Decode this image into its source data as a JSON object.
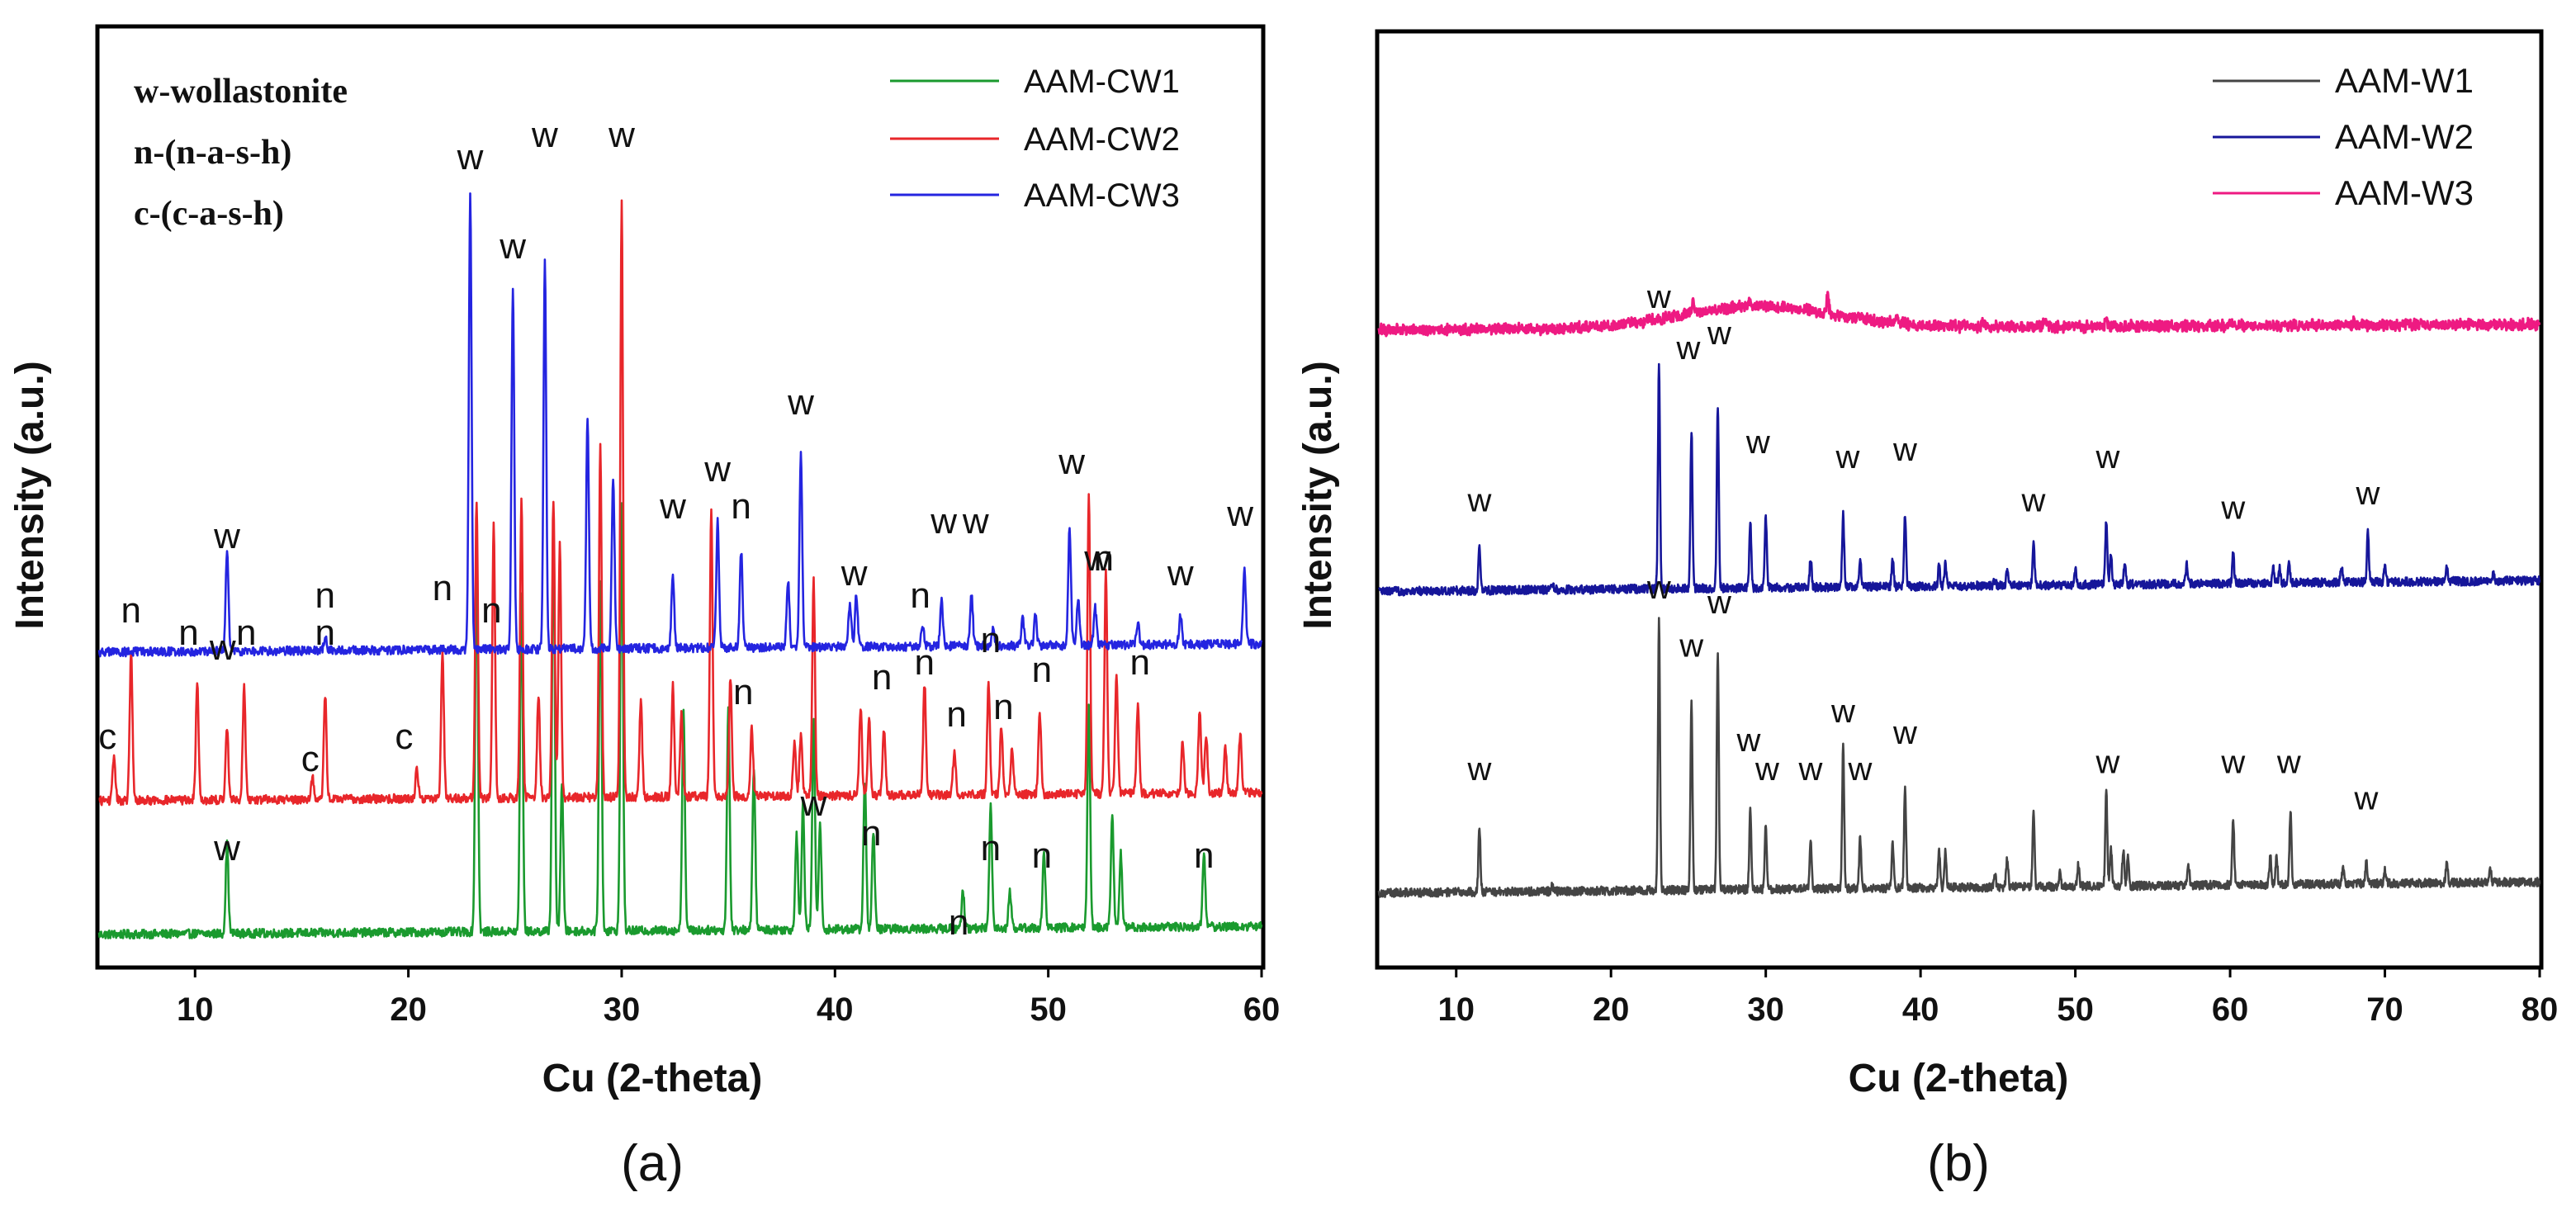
{
  "figure": {
    "panel_a_caption": "(a)",
    "panel_b_caption": "(b)"
  },
  "colors": {
    "cw1": "#1a9a2e",
    "cw2": "#e8262a",
    "cw3": "#2424e0",
    "w1": "#444444",
    "w2": "#16169a",
    "w3": "#ee1a82"
  },
  "chart_data": [
    {
      "type": "line",
      "panel": "a",
      "title": "",
      "xlabel": "Cu (2-theta)",
      "ylabel": "Intensity (a.u.)",
      "xlim": [
        5.5,
        60
      ],
      "xticks": [
        10,
        20,
        30,
        40,
        50,
        60
      ],
      "legend": {
        "placement": "top-right",
        "entries": [
          "AAM-CW1",
          "AAM-CW2",
          "AAM-CW3"
        ]
      },
      "phase_key": [
        "w-wollastonite",
        "n-(n-a-s-h)",
        "c-(c-a-s-h)"
      ],
      "series": [
        {
          "name": "AAM-CW1",
          "color_key": "cw1",
          "baseline": 0.02,
          "slope": 0.0002,
          "peaks": [
            [
              11.5,
              0.12
            ],
            [
              23.2,
              0.52
            ],
            [
              25.3,
              0.46
            ],
            [
              26.8,
              0.56
            ],
            [
              27.2,
              0.2
            ],
            [
              29.0,
              0.47
            ],
            [
              30.0,
              0.58
            ],
            [
              32.9,
              0.3
            ],
            [
              35.0,
              0.3
            ],
            [
              36.2,
              0.22
            ],
            [
              38.2,
              0.13
            ],
            [
              38.5,
              0.17
            ],
            [
              39.0,
              0.28
            ],
            [
              39.3,
              0.14
            ],
            [
              41.4,
              0.2
            ],
            [
              41.8,
              0.13
            ],
            [
              46.0,
              0.05
            ],
            [
              47.3,
              0.17
            ],
            [
              48.2,
              0.05
            ],
            [
              49.8,
              0.1
            ],
            [
              51.9,
              0.3
            ],
            [
              53.0,
              0.15
            ],
            [
              53.4,
              0.1
            ],
            [
              57.3,
              0.1
            ]
          ]
        },
        {
          "name": "AAM-CW2",
          "color_key": "cw2",
          "baseline": 0.2,
          "slope": 0.0002,
          "peaks": [
            [
              6.2,
              0.06
            ],
            [
              7.0,
              0.2
            ],
            [
              10.1,
              0.16
            ],
            [
              11.5,
              0.1
            ],
            [
              12.3,
              0.15
            ],
            [
              15.5,
              0.03
            ],
            [
              16.1,
              0.14
            ],
            [
              20.4,
              0.04
            ],
            [
              21.6,
              0.2
            ],
            [
              23.2,
              0.4
            ],
            [
              24.0,
              0.37
            ],
            [
              25.3,
              0.4
            ],
            [
              26.1,
              0.14
            ],
            [
              26.8,
              0.4
            ],
            [
              27.1,
              0.34
            ],
            [
              29.0,
              0.47
            ],
            [
              30.0,
              0.8
            ],
            [
              30.9,
              0.13
            ],
            [
              32.4,
              0.15
            ],
            [
              32.8,
              0.11
            ],
            [
              34.2,
              0.39
            ],
            [
              35.1,
              0.16
            ],
            [
              36.1,
              0.09
            ],
            [
              38.1,
              0.07
            ],
            [
              38.4,
              0.08
            ],
            [
              39.0,
              0.29
            ],
            [
              41.2,
              0.12
            ],
            [
              41.6,
              0.1
            ],
            [
              42.3,
              0.09
            ],
            [
              44.2,
              0.15
            ],
            [
              45.6,
              0.06
            ],
            [
              47.2,
              0.15
            ],
            [
              47.8,
              0.09
            ],
            [
              48.3,
              0.06
            ],
            [
              49.6,
              0.11
            ],
            [
              51.9,
              0.4
            ],
            [
              52.7,
              0.3
            ],
            [
              53.2,
              0.16
            ],
            [
              54.2,
              0.12
            ],
            [
              56.3,
              0.07
            ],
            [
              57.1,
              0.11
            ],
            [
              57.4,
              0.08
            ],
            [
              58.3,
              0.06
            ],
            [
              59.0,
              0.08
            ]
          ]
        },
        {
          "name": "AAM-CW3",
          "color_key": "cw3",
          "baseline": 0.4,
          "slope": 0.0002,
          "peaks": [
            [
              11.5,
              0.14
            ],
            [
              16.1,
              0.02
            ],
            [
              22.9,
              0.61
            ],
            [
              24.9,
              0.49
            ],
            [
              26.4,
              0.52
            ],
            [
              28.4,
              0.31
            ],
            [
              29.6,
              0.23
            ],
            [
              32.4,
              0.1
            ],
            [
              34.5,
              0.17
            ],
            [
              35.6,
              0.13
            ],
            [
              37.8,
              0.09
            ],
            [
              38.4,
              0.26
            ],
            [
              40.7,
              0.06
            ],
            [
              41.0,
              0.07
            ],
            [
              44.1,
              0.03
            ],
            [
              45.0,
              0.06
            ],
            [
              46.4,
              0.07
            ],
            [
              47.4,
              0.02
            ],
            [
              48.8,
              0.04
            ],
            [
              49.4,
              0.04
            ],
            [
              51.0,
              0.16
            ],
            [
              51.4,
              0.06
            ],
            [
              52.2,
              0.05
            ],
            [
              54.2,
              0.03
            ],
            [
              56.2,
              0.04
            ],
            [
              59.2,
              0.1
            ]
          ]
        }
      ],
      "annotations": [
        {
          "text": "w",
          "x": 11.5,
          "y": 0.54
        },
        {
          "text": "n",
          "x": 16.1,
          "y": 0.46
        },
        {
          "text": "w",
          "x": 22.9,
          "y": 1.05
        },
        {
          "text": "w",
          "x": 24.9,
          "y": 0.93
        },
        {
          "text": "w",
          "x": 26.4,
          "y": 1.08
        },
        {
          "text": "w",
          "x": 30.0,
          "y": 1.08
        },
        {
          "text": "w",
          "x": 38.4,
          "y": 0.72
        },
        {
          "text": "w",
          "x": 32.4,
          "y": 0.58
        },
        {
          "text": "w",
          "x": 34.5,
          "y": 0.63
        },
        {
          "text": "n",
          "x": 35.6,
          "y": 0.58
        },
        {
          "text": "w",
          "x": 40.9,
          "y": 0.49
        },
        {
          "text": "n",
          "x": 44.0,
          "y": 0.46
        },
        {
          "text": "w",
          "x": 45.1,
          "y": 0.56
        },
        {
          "text": "w",
          "x": 46.6,
          "y": 0.56
        },
        {
          "text": "w",
          "x": 51.1,
          "y": 0.64
        },
        {
          "text": "w",
          "x": 52.3,
          "y": 0.51
        },
        {
          "text": "w",
          "x": 56.2,
          "y": 0.49
        },
        {
          "text": "w",
          "x": 59.0,
          "y": 0.57
        },
        {
          "text": "c",
          "x": 5.9,
          "y": 0.27
        },
        {
          "text": "n",
          "x": 7.0,
          "y": 0.44
        },
        {
          "text": "n",
          "x": 9.7,
          "y": 0.41
        },
        {
          "text": "w",
          "x": 11.3,
          "y": 0.39
        },
        {
          "text": "n",
          "x": 12.4,
          "y": 0.41
        },
        {
          "text": "c",
          "x": 15.4,
          "y": 0.24
        },
        {
          "text": "n",
          "x": 16.1,
          "y": 0.41
        },
        {
          "text": "c",
          "x": 19.8,
          "y": 0.27
        },
        {
          "text": "n",
          "x": 21.6,
          "y": 0.47
        },
        {
          "text": "n",
          "x": 23.9,
          "y": 0.44
        },
        {
          "text": "n",
          "x": 35.7,
          "y": 0.33
        },
        {
          "text": "n",
          "x": 42.2,
          "y": 0.35
        },
        {
          "text": "n",
          "x": 44.2,
          "y": 0.37
        },
        {
          "text": "n",
          "x": 45.7,
          "y": 0.3
        },
        {
          "text": "n",
          "x": 47.3,
          "y": 0.4
        },
        {
          "text": "n",
          "x": 47.9,
          "y": 0.31
        },
        {
          "text": "n",
          "x": 49.7,
          "y": 0.36
        },
        {
          "text": "n",
          "x": 52.6,
          "y": 0.51
        },
        {
          "text": "n",
          "x": 54.3,
          "y": 0.37
        },
        {
          "text": "w",
          "x": 39.0,
          "y": 0.18
        },
        {
          "text": "w",
          "x": 11.5,
          "y": 0.12
        },
        {
          "text": "n",
          "x": 41.7,
          "y": 0.14
        },
        {
          "text": "n",
          "x": 47.3,
          "y": 0.12
        },
        {
          "text": "n",
          "x": 45.8,
          "y": 0.02
        },
        {
          "text": "n",
          "x": 49.7,
          "y": 0.11
        },
        {
          "text": "n",
          "x": 57.3,
          "y": 0.11
        }
      ]
    },
    {
      "type": "line",
      "panel": "b",
      "title": "",
      "xlabel": "Cu (2-theta)",
      "ylabel": "Intensity (a.u.)",
      "xlim": [
        5,
        80
      ],
      "xticks": [
        10,
        20,
        30,
        40,
        50,
        60,
        70,
        80
      ],
      "legend": {
        "placement": "top-right",
        "entries": [
          "AAM-W1",
          "AAM-W2",
          "AAM-W3"
        ]
      },
      "series": [
        {
          "name": "AAM-W1",
          "color_key": "w1",
          "baseline": 0.055,
          "slope": 0.0002,
          "peaks": [
            [
              11.5,
              0.09
            ],
            [
              16.2,
              0.01
            ],
            [
              23.1,
              0.37
            ],
            [
              25.2,
              0.26
            ],
            [
              26.9,
              0.33
            ],
            [
              29.0,
              0.11
            ],
            [
              30.0,
              0.09
            ],
            [
              32.9,
              0.07
            ],
            [
              35.0,
              0.2
            ],
            [
              36.1,
              0.07
            ],
            [
              38.2,
              0.06
            ],
            [
              39.0,
              0.14
            ],
            [
              41.2,
              0.05
            ],
            [
              41.6,
              0.05
            ],
            [
              44.8,
              0.02
            ],
            [
              45.6,
              0.04
            ],
            [
              47.3,
              0.1
            ],
            [
              49.0,
              0.02
            ],
            [
              50.2,
              0.03
            ],
            [
              52.0,
              0.13
            ],
            [
              52.3,
              0.05
            ],
            [
              53.1,
              0.05
            ],
            [
              53.4,
              0.04
            ],
            [
              57.3,
              0.03
            ],
            [
              60.2,
              0.09
            ],
            [
              62.6,
              0.04
            ],
            [
              63.0,
              0.04
            ],
            [
              63.9,
              0.1
            ],
            [
              67.3,
              0.02
            ],
            [
              68.8,
              0.03
            ],
            [
              70.0,
              0.02
            ],
            [
              74.0,
              0.03
            ],
            [
              76.8,
              0.02
            ]
          ]
        },
        {
          "name": "AAM-W2",
          "color_key": "w2",
          "baseline": 0.47,
          "slope": 0.0002,
          "peaks": [
            [
              11.5,
              0.06
            ],
            [
              16.2,
              0.01
            ],
            [
              23.1,
              0.31
            ],
            [
              25.2,
              0.22
            ],
            [
              26.9,
              0.25
            ],
            [
              29.0,
              0.09
            ],
            [
              30.0,
              0.1
            ],
            [
              32.9,
              0.04
            ],
            [
              35.0,
              0.1
            ],
            [
              36.1,
              0.04
            ],
            [
              38.2,
              0.04
            ],
            [
              39.0,
              0.1
            ],
            [
              41.2,
              0.03
            ],
            [
              41.6,
              0.03
            ],
            [
              44.8,
              0.01
            ],
            [
              45.6,
              0.02
            ],
            [
              47.3,
              0.06
            ],
            [
              50.0,
              0.02
            ],
            [
              52.0,
              0.09
            ],
            [
              52.3,
              0.04
            ],
            [
              53.2,
              0.03
            ],
            [
              57.2,
              0.03
            ],
            [
              60.2,
              0.04
            ],
            [
              62.8,
              0.02
            ],
            [
              63.2,
              0.02
            ],
            [
              63.8,
              0.03
            ],
            [
              67.2,
              0.02
            ],
            [
              68.9,
              0.07
            ],
            [
              70.0,
              0.02
            ],
            [
              74.0,
              0.02
            ],
            [
              77.0,
              0.01
            ]
          ]
        },
        {
          "name": "AAM-W3",
          "color_key": "w3",
          "baseline": 0.83,
          "slope": 0.0001,
          "hump": {
            "center": 29.5,
            "height": 0.03,
            "width": 7.0
          },
          "peaks": [
            [
              25.3,
              0.02
            ],
            [
              29.0,
              0.012
            ],
            [
              34.0,
              0.025
            ],
            [
              38.5,
              0.01
            ],
            [
              44.0,
              0.008
            ],
            [
              48.0,
              0.01
            ],
            [
              52.0,
              0.008
            ],
            [
              60.0,
              0.006
            ],
            [
              68.0,
              0.006
            ]
          ]
        }
      ],
      "annotations": [
        {
          "text": "w",
          "x": 23.1,
          "y": 0.86
        },
        {
          "text": "w",
          "x": 25.0,
          "y": 0.79
        },
        {
          "text": "w",
          "x": 27.0,
          "y": 0.81
        },
        {
          "text": "w",
          "x": 29.5,
          "y": 0.66
        },
        {
          "text": "w",
          "x": 35.3,
          "y": 0.64
        },
        {
          "text": "w",
          "x": 39.0,
          "y": 0.65
        },
        {
          "text": "w",
          "x": 11.5,
          "y": 0.58
        },
        {
          "text": "w",
          "x": 47.3,
          "y": 0.58
        },
        {
          "text": "w",
          "x": 52.1,
          "y": 0.64
        },
        {
          "text": "w",
          "x": 60.2,
          "y": 0.57
        },
        {
          "text": "w",
          "x": 68.9,
          "y": 0.59
        },
        {
          "text": "w",
          "x": 23.1,
          "y": 0.46
        },
        {
          "text": "w",
          "x": 25.2,
          "y": 0.38
        },
        {
          "text": "w",
          "x": 27.0,
          "y": 0.44
        },
        {
          "text": "w",
          "x": 28.9,
          "y": 0.25
        },
        {
          "text": "w",
          "x": 30.1,
          "y": 0.21
        },
        {
          "text": "w",
          "x": 32.9,
          "y": 0.21
        },
        {
          "text": "w",
          "x": 35.0,
          "y": 0.29
        },
        {
          "text": "w",
          "x": 36.1,
          "y": 0.21
        },
        {
          "text": "w",
          "x": 39.0,
          "y": 0.26
        },
        {
          "text": "w",
          "x": 11.5,
          "y": 0.21
        },
        {
          "text": "w",
          "x": 52.1,
          "y": 0.22
        },
        {
          "text": "w",
          "x": 60.2,
          "y": 0.22
        },
        {
          "text": "w",
          "x": 63.8,
          "y": 0.22
        },
        {
          "text": "w",
          "x": 68.8,
          "y": 0.17
        }
      ]
    }
  ]
}
